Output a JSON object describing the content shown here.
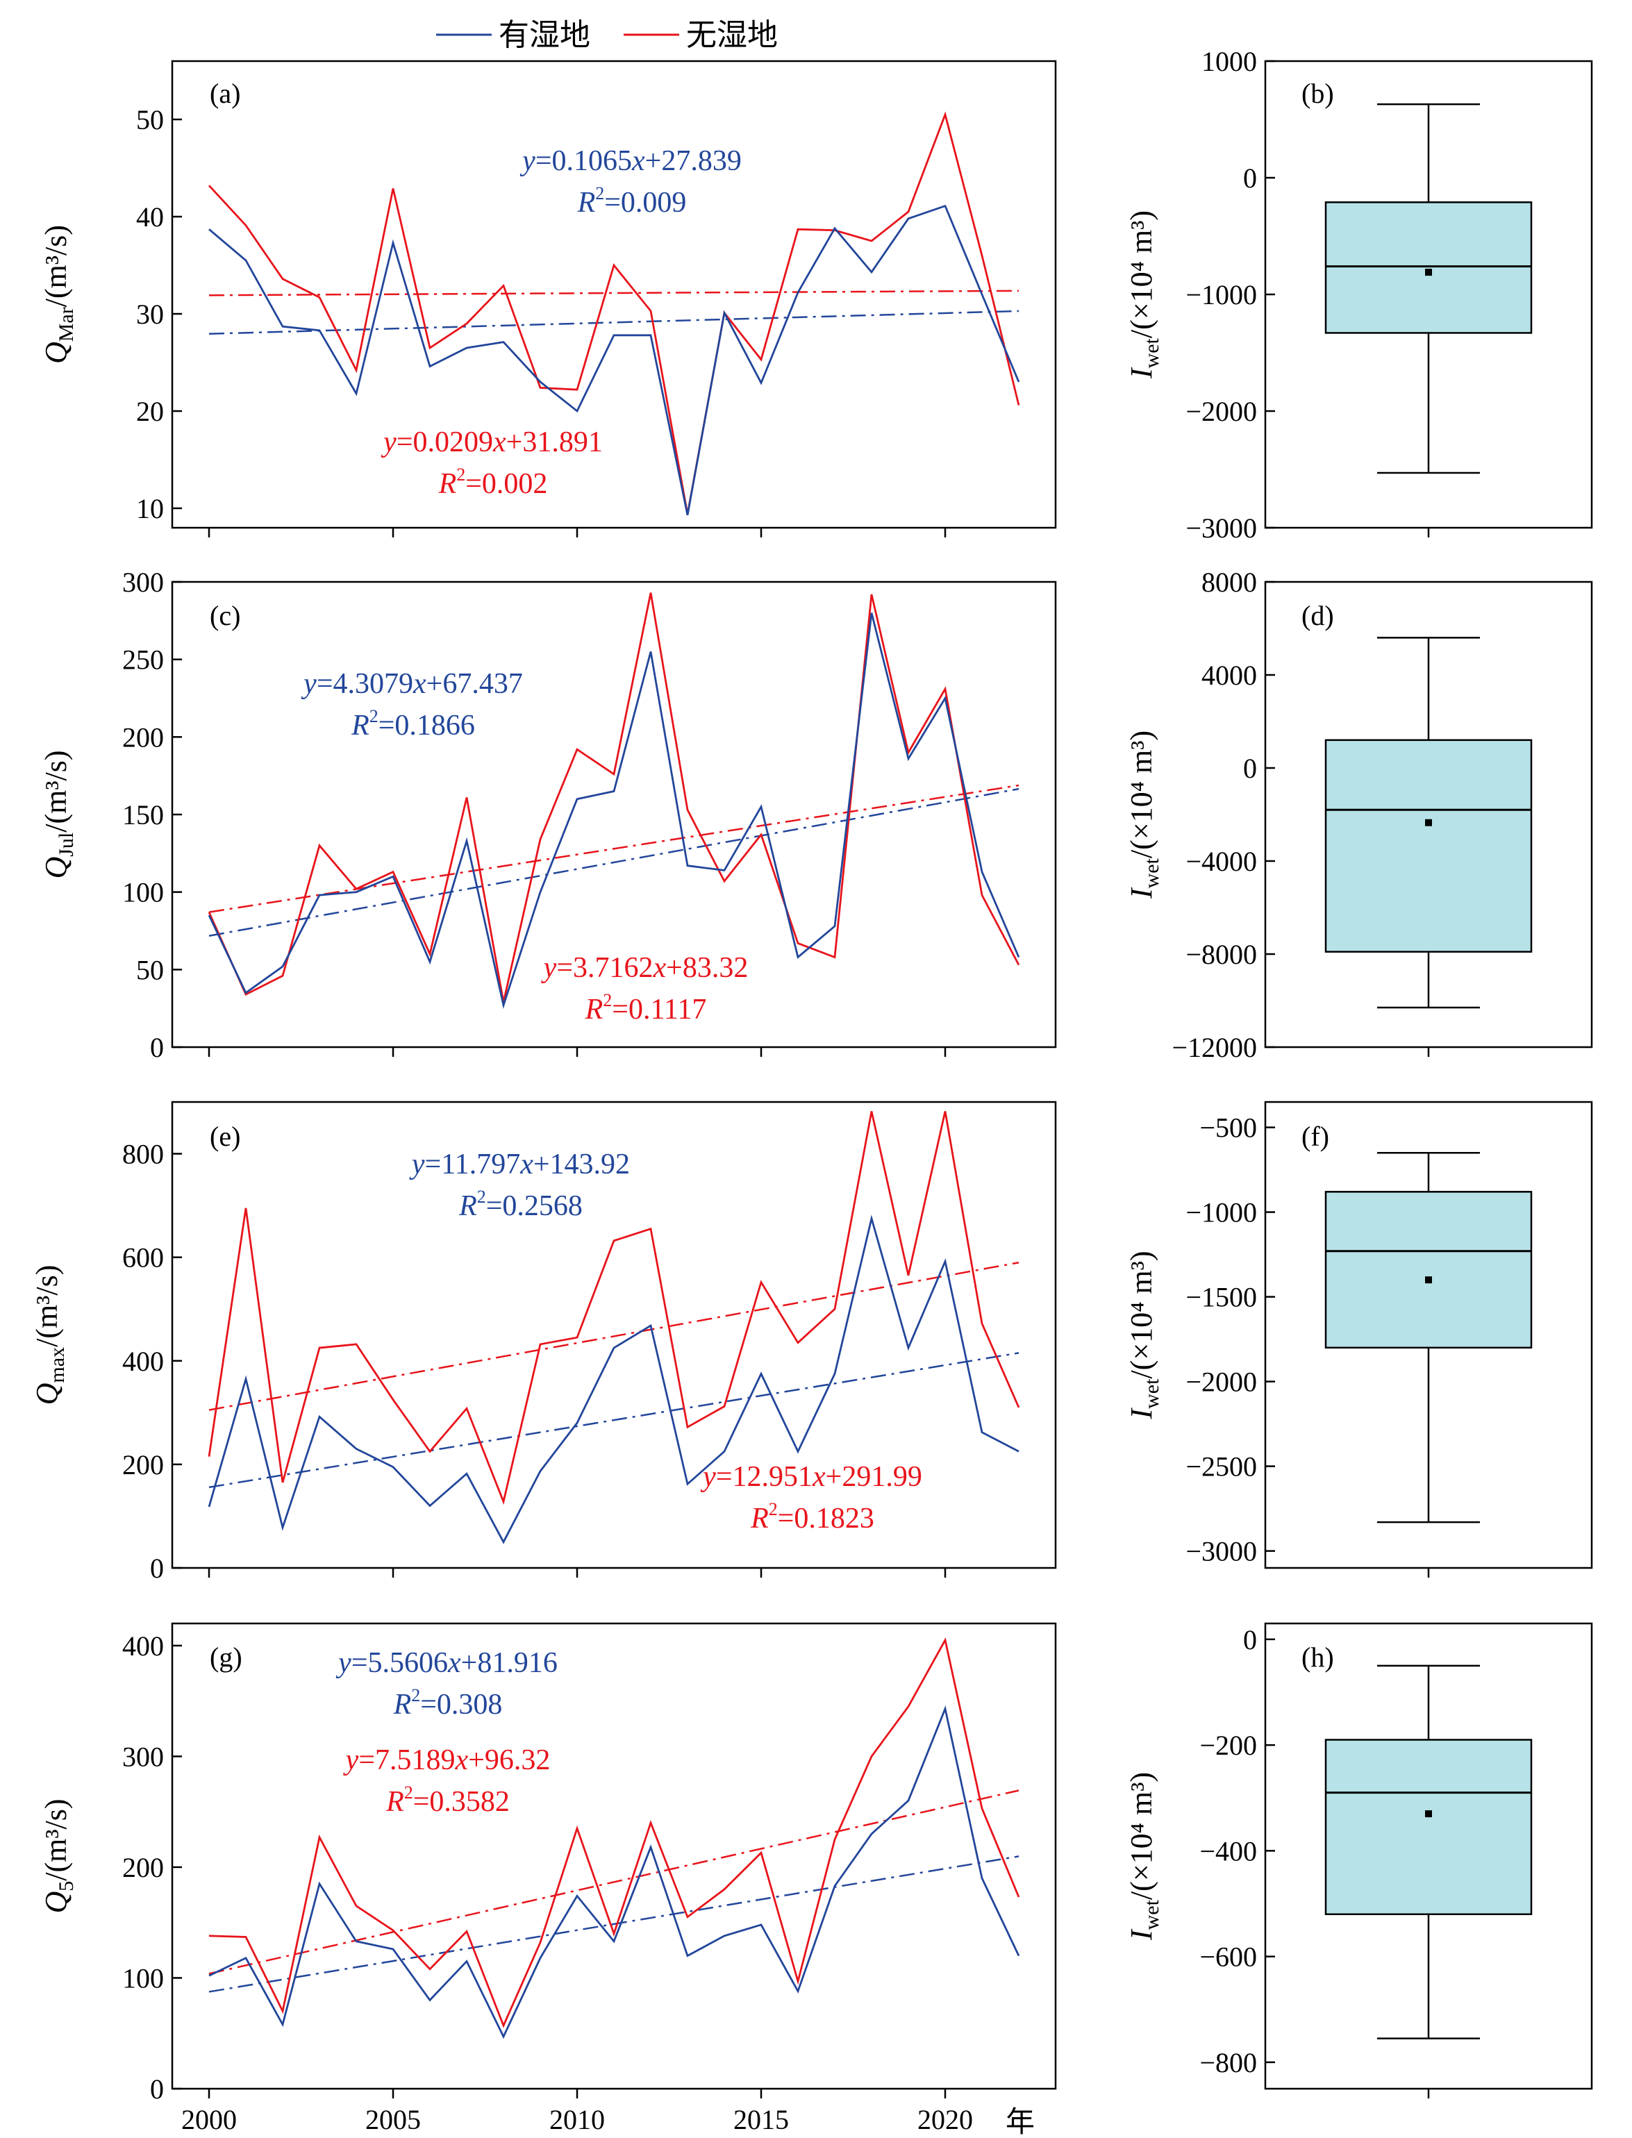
{
  "legend": {
    "wetland": "有湿地",
    "no_wetland": "无湿地"
  },
  "colors": {
    "wetland": "#22469a",
    "no_wetland": "#e8141b",
    "box_fill": "#b7e3e8",
    "axis": "#000000"
  },
  "x_unit": "年",
  "years": [
    2000,
    2001,
    2002,
    2003,
    2004,
    2005,
    2006,
    2007,
    2008,
    2009,
    2010,
    2011,
    2012,
    2013,
    2014,
    2015,
    2016,
    2017,
    2018,
    2019,
    2020,
    2021,
    2022
  ],
  "chart_data": [
    {
      "id": "a",
      "tag": "(a)",
      "type": "line",
      "ylabel_main": "Q",
      "ylabel_sub": "Mar",
      "ylabel_unit": "/(m³/s)",
      "xlim": [
        1999,
        2023
      ],
      "ylim": [
        8,
        56
      ],
      "yticks": [
        10,
        20,
        30,
        40,
        50
      ],
      "xticks": [
        2000,
        2005,
        2010,
        2015,
        2020
      ],
      "series": [
        {
          "name": "有湿地",
          "values": [
            38.7,
            35.5,
            28.7,
            28.3,
            21.8,
            37.3,
            24.6,
            26.5,
            27.1,
            23.0,
            20.0,
            27.8,
            27.8,
            9.3,
            30.1,
            22.9,
            32.2,
            38.8,
            34.3,
            39.8,
            41.1,
            32.0,
            23.0
          ]
        },
        {
          "name": "无湿地",
          "values": [
            43.2,
            39.1,
            33.6,
            31.7,
            24.2,
            42.9,
            26.5,
            29.0,
            32.9,
            22.4,
            22.2,
            35.0,
            30.3,
            9.4,
            30.1,
            25.3,
            38.7,
            38.6,
            37.5,
            40.5,
            50.5,
            36.0,
            20.6
          ]
        }
      ],
      "trends": [
        {
          "series": "有湿地",
          "slope": 0.1065,
          "intercept": 27.839,
          "equation": "y=0.1065x+27.839",
          "r2_label": "R",
          "r2_value": "=0.009"
        },
        {
          "series": "无湿地",
          "slope": 0.0209,
          "intercept": 31.891,
          "equation": "y=0.0209x+31.891",
          "r2_label": "R",
          "r2_value": "=0.002"
        }
      ]
    },
    {
      "id": "b",
      "tag": "(b)",
      "type": "box",
      "ylabel_main": "I",
      "ylabel_sub": "wet",
      "ylabel_unit": "/(×10⁴ m³)",
      "ylim": [
        -3000,
        1000
      ],
      "yticks": [
        -3000,
        -2000,
        -1000,
        0,
        1000
      ],
      "box": {
        "whisker_low": -2530,
        "q1": -1330,
        "median": -760,
        "q3": -210,
        "whisker_high": 630,
        "mean": -810
      }
    },
    {
      "id": "c",
      "tag": "(c)",
      "type": "line",
      "ylabel_main": "Q",
      "ylabel_sub": "Jul",
      "ylabel_unit": "/(m³/s)",
      "xlim": [
        1999,
        2023
      ],
      "ylim": [
        0,
        300
      ],
      "yticks": [
        0,
        50,
        100,
        150,
        200,
        250,
        300
      ],
      "xticks": [
        2000,
        2005,
        2010,
        2015,
        2020
      ],
      "series": [
        {
          "name": "有湿地",
          "values": [
            85,
            35,
            52,
            98,
            100,
            110,
            55,
            133,
            27,
            100,
            160,
            165,
            255,
            117,
            114,
            155,
            58,
            78,
            280,
            186,
            225,
            113,
            58
          ]
        },
        {
          "name": "无湿地",
          "values": [
            87,
            34,
            46,
            130,
            102,
            113,
            60,
            161,
            29,
            134,
            192,
            176,
            293,
            153,
            107,
            137,
            67,
            58,
            292,
            190,
            231,
            98,
            53
          ]
        }
      ],
      "trends": [
        {
          "series": "有湿地",
          "slope": 4.3079,
          "intercept": 67.437,
          "equation": "y=4.3079x+67.437",
          "r2_label": "R",
          "r2_value": "=0.1866"
        },
        {
          "series": "无湿地",
          "slope": 3.7162,
          "intercept": 83.32,
          "equation": "y=3.7162x+83.32",
          "r2_label": "R",
          "r2_value": "=0.1117"
        }
      ]
    },
    {
      "id": "d",
      "tag": "(d)",
      "type": "box",
      "ylabel_main": "I",
      "ylabel_sub": "wet",
      "ylabel_unit": "/(×10⁴ m³)",
      "ylim": [
        -12000,
        8000
      ],
      "yticks": [
        -12000,
        -8000,
        -4000,
        0,
        4000,
        8000
      ],
      "box": {
        "whisker_low": -10300,
        "q1": -7900,
        "median": -1800,
        "q3": 1200,
        "whisker_high": 5600,
        "mean": -2350
      }
    },
    {
      "id": "e",
      "tag": "(e)",
      "type": "line",
      "ylabel_main": "Q",
      "ylabel_sub": "max",
      "ylabel_unit": "/(m³/s)",
      "xlim": [
        1999,
        2023
      ],
      "ylim": [
        0,
        900
      ],
      "yticks": [
        0,
        200,
        400,
        600,
        800
      ],
      "xticks": [
        2000,
        2005,
        2010,
        2015,
        2020
      ],
      "series": [
        {
          "name": "有湿地",
          "values": [
            118,
            365,
            78,
            292,
            230,
            195,
            120,
            182,
            50,
            187,
            280,
            425,
            468,
            162,
            225,
            375,
            225,
            375,
            675,
            425,
            592,
            262,
            225
          ]
        },
        {
          "name": "无湿地",
          "values": [
            215,
            695,
            165,
            425,
            432,
            325,
            225,
            308,
            128,
            432,
            445,
            632,
            655,
            272,
            312,
            552,
            435,
            500,
            882,
            565,
            882,
            472,
            310
          ]
        }
      ],
      "trends": [
        {
          "series": "有湿地",
          "slope": 11.797,
          "intercept": 143.92,
          "equation": "y=11.797x+143.92",
          "r2_label": "R",
          "r2_value": "=0.2568"
        },
        {
          "series": "无湿地",
          "slope": 12.951,
          "intercept": 291.99,
          "equation": "y=12.951x+291.99",
          "r2_label": "R",
          "r2_value": "=0.1823"
        }
      ]
    },
    {
      "id": "f",
      "tag": "(f)",
      "type": "box",
      "ylabel_main": "I",
      "ylabel_sub": "wet",
      "ylabel_unit": "/(×10⁴ m³)",
      "ylim": [
        -3100,
        -350
      ],
      "yticks": [
        -3000,
        -2500,
        -2000,
        -1500,
        -1000,
        -500
      ],
      "box": {
        "whisker_low": -2830,
        "q1": -1800,
        "median": -1230,
        "q3": -880,
        "whisker_high": -650,
        "mean": -1400
      }
    },
    {
      "id": "g",
      "tag": "(g)",
      "type": "line",
      "ylabel_main": "Q",
      "ylabel_sub": "5",
      "ylabel_unit": "/(m³/s)",
      "xlim": [
        1999,
        2023
      ],
      "ylim": [
        0,
        420
      ],
      "yticks": [
        0,
        100,
        200,
        300,
        400
      ],
      "xticks": [
        2000,
        2005,
        2010,
        2015,
        2020
      ],
      "series": [
        {
          "name": "有湿地",
          "values": [
            102,
            118,
            58,
            185,
            133,
            126,
            80,
            115,
            47,
            118,
            174,
            133,
            218,
            120,
            138,
            148,
            88,
            183,
            230,
            260,
            343,
            190,
            120
          ]
        },
        {
          "name": "无湿地",
          "values": [
            138,
            137,
            70,
            227,
            165,
            143,
            108,
            142,
            57,
            132,
            235,
            140,
            240,
            155,
            180,
            213,
            97,
            225,
            300,
            345,
            405,
            253,
            173
          ]
        }
      ],
      "trends": [
        {
          "series": "有湿地",
          "slope": 5.5606,
          "intercept": 81.916,
          "equation": "y=5.5606x+81.916",
          "r2_label": "R",
          "r2_value": "=0.308"
        },
        {
          "series": "无湿地",
          "slope": 7.5189,
          "intercept": 96.32,
          "equation": "y=7.5189x+96.32",
          "r2_label": "R",
          "r2_value": "=0.3582"
        }
      ]
    },
    {
      "id": "h",
      "tag": "(h)",
      "type": "box",
      "ylabel_main": "I",
      "ylabel_sub": "wet",
      "ylabel_unit": "/(×10⁴ m³)",
      "ylim": [
        -850,
        30
      ],
      "yticks": [
        -800,
        -600,
        -400,
        -200,
        0
      ],
      "box": {
        "whisker_low": -755,
        "q1": -520,
        "median": -290,
        "q3": -190,
        "whisker_high": -50,
        "mean": -330
      }
    }
  ]
}
